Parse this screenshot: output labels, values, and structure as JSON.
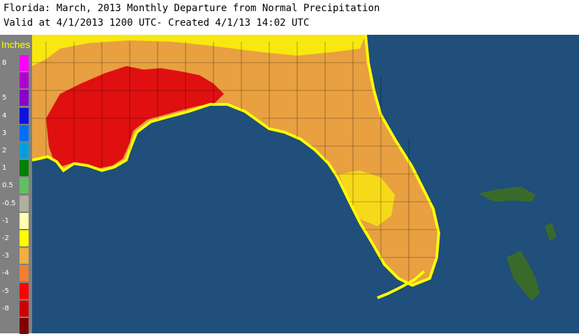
{
  "header": {
    "title": "Florida: March, 2013 Monthly Departure from Normal Precipitation",
    "subtitle": "Valid at 4/1/2013 1200 UTC- Created 4/1/13 14:02 UTC"
  },
  "legend": {
    "unit_label": "Inches",
    "items": [
      {
        "label": "8",
        "color": "#ff00ff"
      },
      {
        "label": "",
        "color": "#b000d0"
      },
      {
        "label": "5",
        "color": "#8a00c8"
      },
      {
        "label": "4",
        "color": "#1010e0"
      },
      {
        "label": "3",
        "color": "#0070f0"
      },
      {
        "label": "2",
        "color": "#00a0e0"
      },
      {
        "label": "1",
        "color": "#008000"
      },
      {
        "label": "0.5",
        "color": "#60c060"
      },
      {
        "label": "-0.5",
        "color": "#b0b0a0"
      },
      {
        "label": "-1",
        "color": "#ffffb0"
      },
      {
        "label": "-2",
        "color": "#ffff00"
      },
      {
        "label": "-3",
        "color": "#f0b040"
      },
      {
        "label": "-4",
        "color": "#f08030"
      },
      {
        "label": "-5",
        "color": "#ff0000"
      },
      {
        "label": "-8",
        "color": "#d00000"
      },
      {
        "label": "",
        "color": "#800000"
      }
    ]
  },
  "map": {
    "ocean_color": "#1f4f7a",
    "land_base_color": "#e8a040",
    "panhandle_deficit_color": "#e01010",
    "coast_color": "#ffff00",
    "bahamas_color": "#3a6a2a"
  }
}
